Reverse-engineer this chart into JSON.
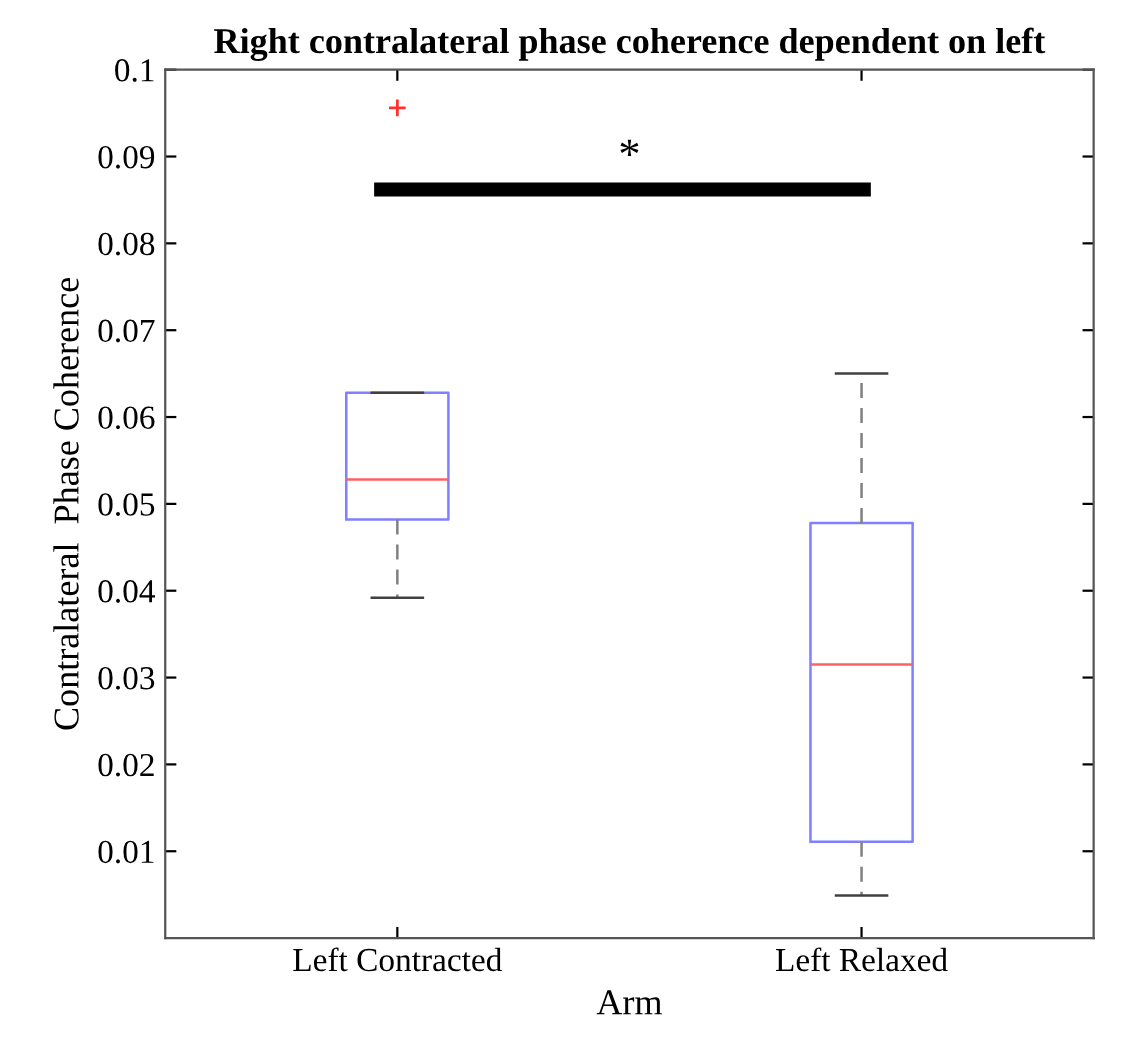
{
  "chart_data": {
    "type": "box",
    "title": "Right contralateral phase coherence dependent on left",
    "xlabel": "Arm",
    "ylabel": "Contralateral  Phase Coherence",
    "categories": [
      "Left Contracted",
      "Left Relaxed"
    ],
    "boxes": [
      {
        "low": 0.0392,
        "q1": 0.0482,
        "median": 0.0528,
        "q3": 0.0628,
        "high": 0.0628,
        "outliers": [
          0.0956
        ]
      },
      {
        "low": 0.0049,
        "q1": 0.0111,
        "median": 0.0315,
        "q3": 0.0478,
        "high": 0.065
      }
    ],
    "color": "#7f7fff",
    "ylim": [
      0,
      0.1
    ],
    "yticks": [
      0.01,
      0.02,
      0.03,
      0.04,
      0.05,
      0.06,
      0.07,
      0.08,
      0.09,
      0.1
    ],
    "grid": false,
    "annotations": [
      "*"
    ]
  }
}
